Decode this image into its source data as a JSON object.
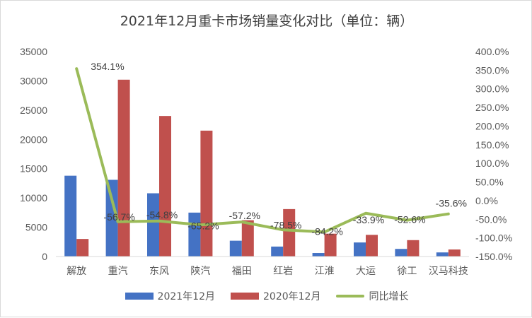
{
  "chart_data": {
    "type": "bar",
    "title": "2021年12月重卡市场销量变化对比（单位：辆）",
    "categories": [
      "解放",
      "重汽",
      "东风",
      "陕汽",
      "福田",
      "红岩",
      "江淮",
      "大运",
      "徐工",
      "汉马科技"
    ],
    "series": [
      {
        "name": "2021年12月",
        "type": "bar",
        "axis": "left",
        "color": "#4472C4",
        "values": [
          13800,
          13100,
          10800,
          7500,
          2700,
          1700,
          600,
          2400,
          1300,
          700
        ]
      },
      {
        "name": "2020年12月",
        "type": "bar",
        "axis": "left",
        "color": "#C0504D",
        "values": [
          3000,
          30200,
          24000,
          21500,
          6200,
          8100,
          3900,
          3700,
          2800,
          1200
        ]
      },
      {
        "name": "同比增长",
        "type": "line",
        "axis": "right",
        "color": "#9BBB59",
        "values": [
          354.1,
          -56.7,
          -54.8,
          -65.2,
          -57.2,
          -78.5,
          -84.2,
          -33.9,
          -52.6,
          -35.6
        ],
        "labels": [
          "354.1%",
          "-56.7%",
          "-54.8%",
          "-65.2%",
          "-57.2%",
          "-78.5%",
          "-84.2%",
          "-33.9%",
          "-52.6%",
          "-35.6%"
        ]
      }
    ],
    "left_axis": {
      "ylim": [
        0,
        35000
      ],
      "ticks": [
        "0",
        "5000",
        "10000",
        "15000",
        "20000",
        "25000",
        "30000",
        "35000"
      ]
    },
    "right_axis": {
      "ylim": [
        -150,
        400
      ],
      "ticks": [
        "-150.0%",
        "-100.0%",
        "-50.0%",
        "0.0%",
        "50.0%",
        "100.0%",
        "150.0%",
        "200.0%",
        "250.0%",
        "300.0%",
        "350.0%",
        "400.0%"
      ]
    },
    "grid": false,
    "legend": "bottom"
  }
}
